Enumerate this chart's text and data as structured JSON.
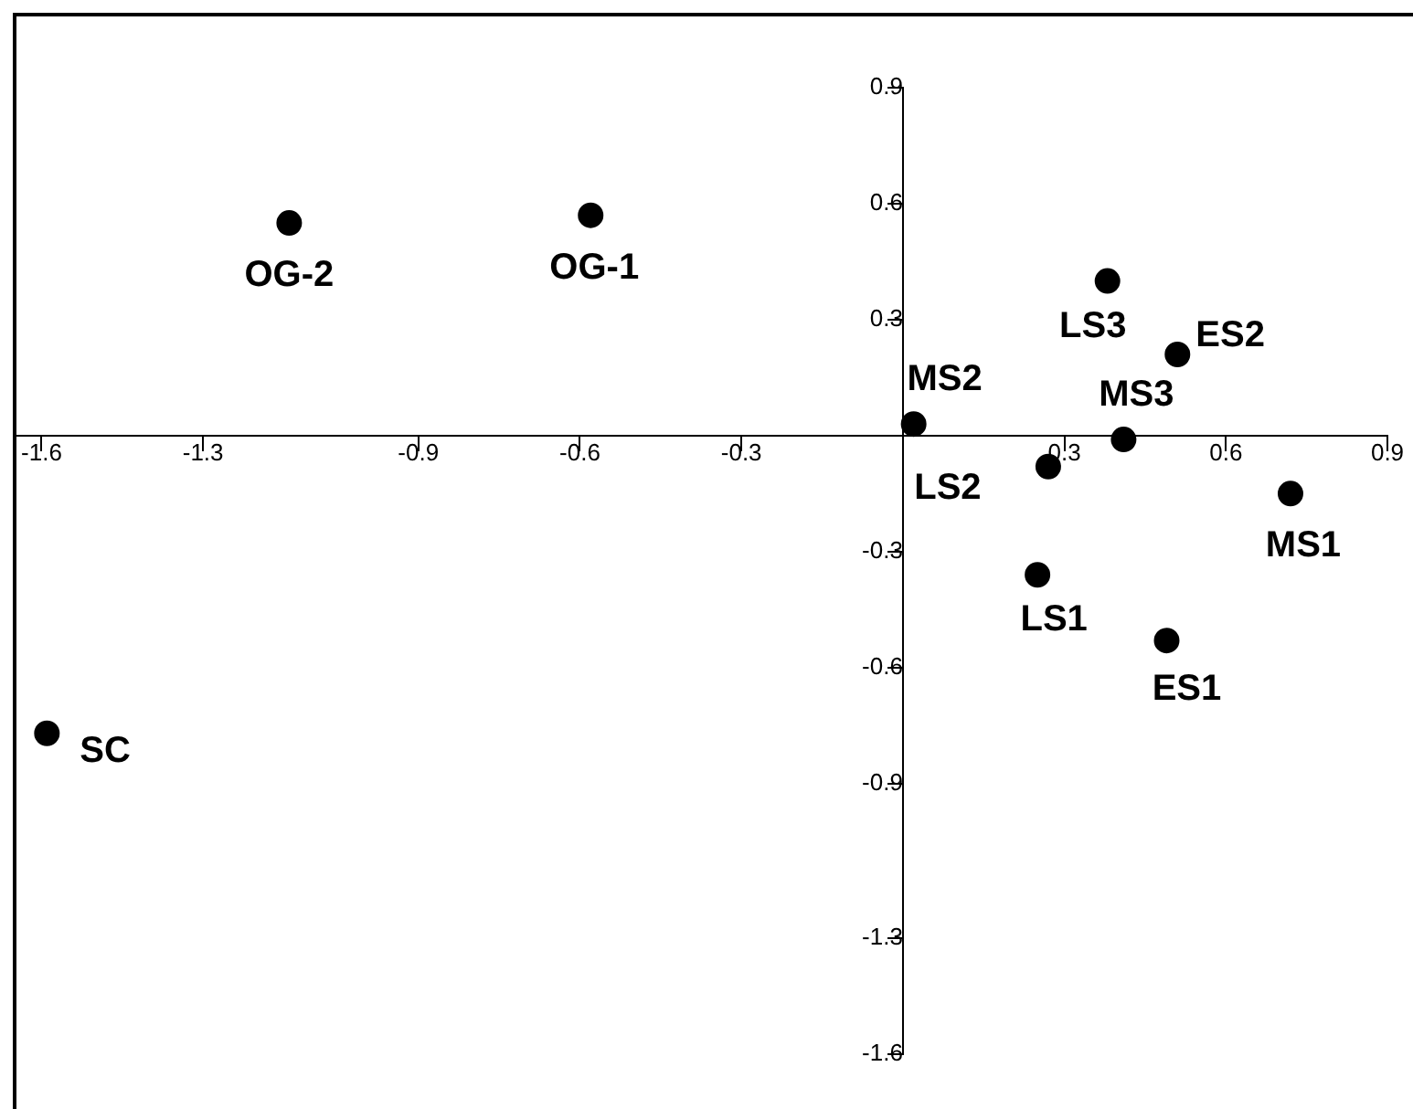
{
  "chart_data": {
    "type": "scatter",
    "x": [
      -1.14,
      -0.58,
      -1.59,
      0.02,
      0.38,
      0.51,
      0.41,
      0.27,
      0.72,
      0.25,
      0.49
    ],
    "values": [
      0.55,
      0.57,
      -0.77,
      0.03,
      0.4,
      0.21,
      -0.01,
      -0.08,
      -0.15,
      -0.36,
      -0.53
    ],
    "color": "#000000",
    "marker": "circle",
    "legend": false,
    "grid": false,
    "xlim": [
      -1.65,
      0.9
    ],
    "ylim": [
      -1.6,
      0.9
    ],
    "xticks": [
      -1.6,
      -1.3,
      -0.9,
      -0.6,
      -0.3,
      0.3,
      0.6,
      0.9
    ],
    "yticks": [
      0.9,
      0.6,
      0.3,
      -0.3,
      -0.6,
      -0.9,
      -1.3,
      -1.6
    ],
    "annotations": [
      {
        "text": "OG-2",
        "x": -1.14,
        "y": 0.55
      },
      {
        "text": "OG-1",
        "x": -0.58,
        "y": 0.57
      },
      {
        "text": "SC",
        "x": -1.59,
        "y": -0.77
      },
      {
        "text": "MS2",
        "x": 0.02,
        "y": 0.03
      },
      {
        "text": "LS3",
        "x": 0.38,
        "y": 0.4
      },
      {
        "text": "ES2",
        "x": 0.51,
        "y": 0.21
      },
      {
        "text": "MS3",
        "x": 0.41,
        "y": -0.01
      },
      {
        "text": "LS2",
        "x": 0.27,
        "y": -0.08
      },
      {
        "text": "MS1",
        "x": 0.72,
        "y": -0.15
      },
      {
        "text": "LS1",
        "x": 0.25,
        "y": -0.36
      },
      {
        "text": "ES1",
        "x": 0.49,
        "y": -0.53
      }
    ]
  }
}
